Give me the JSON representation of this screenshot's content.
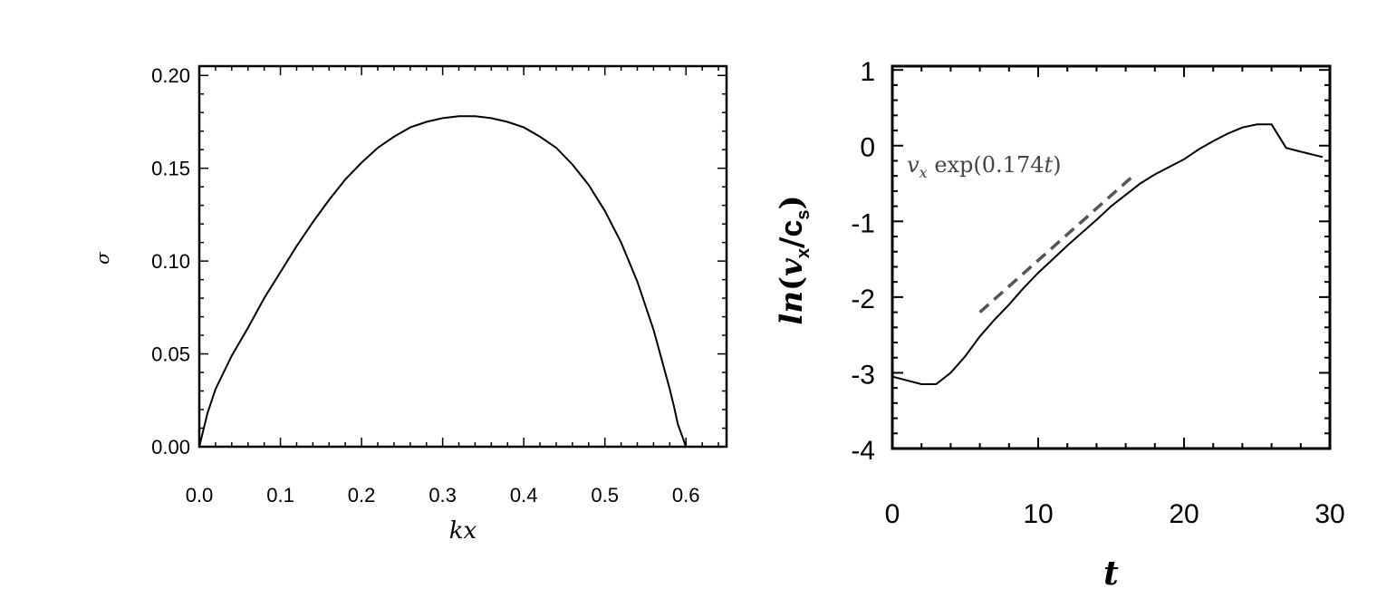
{
  "chart_data": [
    {
      "type": "line",
      "xlabel": "kx",
      "ylabel": "σ",
      "xlim": [
        0.0,
        0.65
      ],
      "ylim": [
        0.0,
        0.205
      ],
      "xticks": [
        "0.0",
        "0.1",
        "0.2",
        "0.3",
        "0.4",
        "0.5",
        "0.6"
      ],
      "yticks": [
        "0.00",
        "0.05",
        "0.10",
        "0.15",
        "0.20"
      ],
      "grid": false,
      "series": [
        {
          "x": [
            0.0,
            0.01,
            0.02,
            0.04,
            0.06,
            0.08,
            0.1,
            0.12,
            0.14,
            0.16,
            0.18,
            0.2,
            0.22,
            0.24,
            0.26,
            0.28,
            0.3,
            0.32,
            0.34,
            0.36,
            0.38,
            0.4,
            0.42,
            0.44,
            0.46,
            0.48,
            0.5,
            0.52,
            0.54,
            0.56,
            0.57,
            0.58,
            0.585,
            0.59,
            0.595,
            0.6
          ],
          "y": [
            0.0,
            0.018,
            0.031,
            0.049,
            0.064,
            0.08,
            0.094,
            0.108,
            0.121,
            0.133,
            0.144,
            0.153,
            0.161,
            0.167,
            0.172,
            0.175,
            0.177,
            0.178,
            0.178,
            0.177,
            0.175,
            0.172,
            0.167,
            0.161,
            0.152,
            0.141,
            0.127,
            0.11,
            0.089,
            0.063,
            0.047,
            0.031,
            0.022,
            0.012,
            0.006,
            0.0
          ]
        }
      ]
    },
    {
      "type": "line",
      "xlabel": "t",
      "ylabel": "ln(vx/cs)",
      "xlim": [
        0,
        30
      ],
      "ylim": [
        -4.0,
        1.05
      ],
      "xticks": [
        "0",
        "10",
        "20",
        "30"
      ],
      "yticks": [
        "1",
        "0",
        "-1",
        "-2",
        "-3",
        "-4"
      ],
      "grid": false,
      "series": [
        {
          "x": [
            0,
            1,
            2,
            3,
            4,
            5,
            6,
            7,
            8,
            9,
            10,
            11,
            12,
            13,
            14,
            15,
            16,
            17,
            18,
            19,
            20,
            21,
            22,
            23,
            24,
            25,
            26,
            27,
            28,
            29.5
          ],
          "y": [
            -3.05,
            -3.1,
            -3.15,
            -3.15,
            -3.0,
            -2.78,
            -2.52,
            -2.3,
            -2.1,
            -1.88,
            -1.68,
            -1.5,
            -1.32,
            -1.15,
            -0.98,
            -0.8,
            -0.65,
            -0.5,
            -0.38,
            -0.28,
            -0.18,
            -0.05,
            0.06,
            0.16,
            0.24,
            0.28,
            0.28,
            -0.03,
            -0.08,
            -0.15
          ]
        },
        {
          "name": "v_x exp(0.174t)",
          "style": "dashed",
          "color": "#555555",
          "x": [
            6,
            16.5
          ],
          "y": [
            -2.2,
            -0.4
          ]
        }
      ],
      "annotations": [
        {
          "text_base": "v",
          "text_sub": "x",
          "text_rest": " exp(0.174",
          "text_var": "t",
          "text_close": ")"
        }
      ],
      "ylabel_parts": {
        "ln": "ln",
        "open": "(",
        "v": "v",
        "vsub": "x",
        "slash": "/",
        "c": "c",
        "csub": "s",
        "close": ")"
      }
    }
  ],
  "colors": {
    "line": "#000000",
    "dashed": "#555555",
    "frame": "#000000"
  }
}
